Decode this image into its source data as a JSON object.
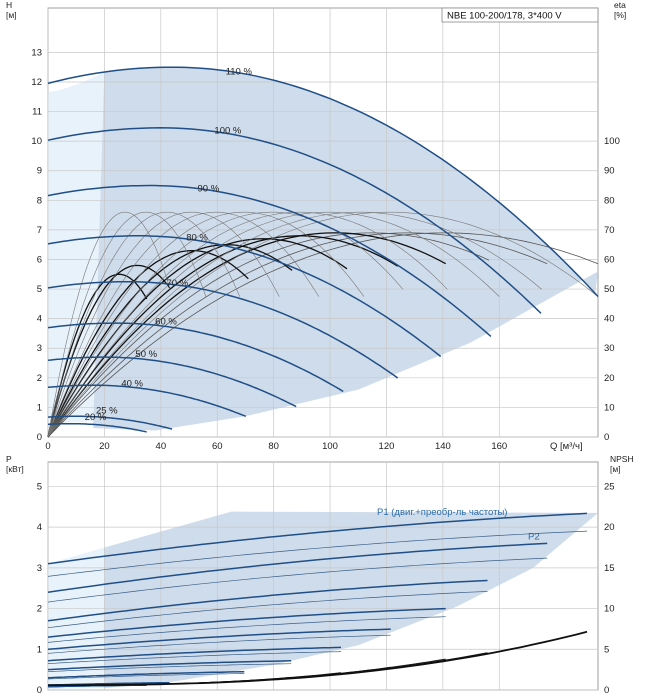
{
  "chart_data": [
    {
      "type": "line",
      "title": "NBE 100-200/178, 3*400 V",
      "xlabel": "Q [м³/ч]",
      "ylabel": "H\n[м]",
      "y2label": "eta\n[%]",
      "xticks": [
        0,
        20,
        40,
        60,
        80,
        100,
        120,
        140,
        160
      ],
      "yticks": [
        0,
        1,
        2,
        3,
        4,
        5,
        6,
        7,
        8,
        9,
        10,
        11,
        12,
        13
      ],
      "y2ticks": [
        0,
        10,
        20,
        30,
        40,
        50,
        60,
        70,
        80,
        90,
        100
      ],
      "xlim": [
        0,
        195
      ],
      "ylim": [
        0,
        14.5
      ],
      "y2lim": [
        0,
        145
      ],
      "grid": true,
      "head_curves": [
        {
          "name": "110 %",
          "h0": 12.45,
          "qmax": 195,
          "qpeak": 44,
          "hpeak": 12.5,
          "qlabel": 63,
          "hlabel": 12.25
        },
        {
          "name": "100 %",
          "h0": 11.3,
          "qmax": 177,
          "qpeak": 40,
          "hpeak": 10.45,
          "qlabel": 59,
          "hlabel": 10.25
        },
        {
          "name": "90 %",
          "h0": 9.15,
          "qmax": 159,
          "qpeak": 36,
          "hpeak": 8.5,
          "qlabel": 53,
          "hlabel": 8.3
        },
        {
          "name": "80 %",
          "h0": 7.23,
          "qmax": 141,
          "qpeak": 32,
          "hpeak": 6.8,
          "qlabel": 49,
          "hlabel": 6.65
        },
        {
          "name": "70 %",
          "h0": 5.54,
          "qmax": 124,
          "qpeak": 28,
          "hpeak": 5.25,
          "qlabel": 42,
          "hlabel": 5.1
        },
        {
          "name": "60 %",
          "h0": 4.07,
          "qmax": 106,
          "qpeak": 24,
          "hpeak": 3.85,
          "qlabel": 38,
          "hlabel": 3.8
        },
        {
          "name": "50 %",
          "h0": 2.82,
          "qmax": 88,
          "qpeak": 20,
          "hpeak": 2.7,
          "qlabel": 31,
          "hlabel": 2.7
        },
        {
          "name": "40 %",
          "h0": 1.81,
          "qmax": 71,
          "qpeak": 16,
          "hpeak": 1.75,
          "qlabel": 26,
          "hlabel": 1.7
        },
        {
          "name": "25 %",
          "h0": 0.71,
          "qmax": 44,
          "qpeak": 10,
          "hpeak": 0.7,
          "qlabel": 17,
          "hlabel": 0.8
        },
        {
          "name": "20 %",
          "h0": 0.45,
          "qmax": 35,
          "qpeak": 8,
          "hpeak": 0.45,
          "qlabel": 13,
          "hlabel": 0.58
        }
      ],
      "eta_curves": [
        {
          "qmax": 195,
          "etamax": 69
        },
        {
          "qmax": 177,
          "etamax": 69
        },
        {
          "qmax": 159,
          "etamax": 69
        },
        {
          "qmax": 141,
          "etamax": 69
        },
        {
          "qmax": 124,
          "etamax": 68
        },
        {
          "qmax": 106,
          "etamax": 67
        },
        {
          "qmax": 88,
          "etamax": 65
        },
        {
          "qmax": 71,
          "etamax": 63
        },
        {
          "qmax": 44,
          "etamax": 58
        },
        {
          "qmax": 35,
          "etamax": 55
        }
      ]
    },
    {
      "type": "line",
      "xlabel": "Q [м³/ч]",
      "ylabel": "P\n[кВт]",
      "y2label": "NPSH\n[м]",
      "yticks": [
        0,
        1,
        2,
        3,
        4,
        5
      ],
      "y2ticks": [
        0,
        5,
        10,
        15,
        20,
        25
      ],
      "ylim": [
        0,
        5.6
      ],
      "y2lim": [
        0,
        28
      ],
      "grid": true,
      "series_labels": [
        "P1 (двиг.+преобр-ль частоты)",
        "P2"
      ],
      "power_curves": [
        {
          "qmax": 195,
          "p0": 3.1,
          "pmax": 4.35
        },
        {
          "qmax": 177,
          "p0": 2.4,
          "pmax": 3.6
        },
        {
          "qmax": 159,
          "p0": 1.7,
          "pmax": 2.7
        },
        {
          "qmax": 141,
          "p0": 1.3,
          "pmax": 2.0
        },
        {
          "qmax": 124,
          "p0": 1.0,
          "pmax": 1.5
        },
        {
          "qmax": 106,
          "p0": 0.72,
          "pmax": 1.05
        },
        {
          "qmax": 88,
          "p0": 0.5,
          "pmax": 0.72
        },
        {
          "qmax": 71,
          "p0": 0.3,
          "pmax": 0.45
        },
        {
          "qmax": 44,
          "p0": 0.12,
          "pmax": 0.18
        },
        {
          "qmax": 35,
          "p0": 0.08,
          "pmax": 0.12
        }
      ],
      "npsh_curves": [
        {
          "qmax": 195,
          "npsh_end": 7.5
        },
        {
          "qmax": 177,
          "npsh_end": 6.0
        },
        {
          "qmax": 159,
          "npsh_end": 4.8
        },
        {
          "qmax": 141,
          "npsh_end": 3.8
        },
        {
          "qmax": 124,
          "npsh_end": 2.9
        },
        {
          "qmax": 106,
          "npsh_end": 2.2
        },
        {
          "qmax": 88,
          "npsh_end": 1.6
        }
      ]
    }
  ]
}
